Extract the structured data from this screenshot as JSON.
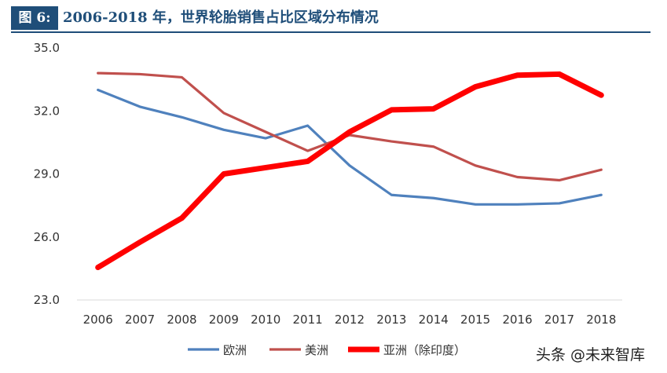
{
  "header": {
    "figure_label": "图 6:",
    "title": "2006-2018 年，世界轮胎销售占比区域分布情况"
  },
  "watermark": "头条 @未来智库",
  "chart_data": {
    "type": "line",
    "title": "",
    "xlabel": "",
    "ylabel": "",
    "ylim": [
      23.0,
      35.0
    ],
    "yticks": [
      "23.0",
      "26.0",
      "29.0",
      "32.0",
      "35.0"
    ],
    "categories": [
      "2006",
      "2007",
      "2008",
      "2009",
      "2010",
      "2011",
      "2012",
      "2013",
      "2014",
      "2015",
      "2016",
      "2017",
      "2018"
    ],
    "grid": false,
    "legend_position": "bottom",
    "series": [
      {
        "name": "欧洲",
        "color": "#4f81bd",
        "values": [
          33.0,
          32.2,
          31.7,
          31.1,
          30.7,
          31.3,
          29.4,
          28.0,
          27.85,
          27.55,
          27.55,
          27.6,
          28.0
        ]
      },
      {
        "name": "美洲",
        "color": "#c0504d",
        "values": [
          33.8,
          33.75,
          33.6,
          31.9,
          31.0,
          30.1,
          30.85,
          30.55,
          30.3,
          29.4,
          28.85,
          28.7,
          29.2
        ]
      },
      {
        "name": "亚洲（除印度）",
        "color": "#ff0000",
        "values": [
          24.55,
          25.75,
          26.9,
          29.0,
          29.3,
          29.6,
          31.0,
          32.05,
          32.1,
          33.15,
          33.7,
          33.75,
          32.75
        ]
      }
    ]
  }
}
